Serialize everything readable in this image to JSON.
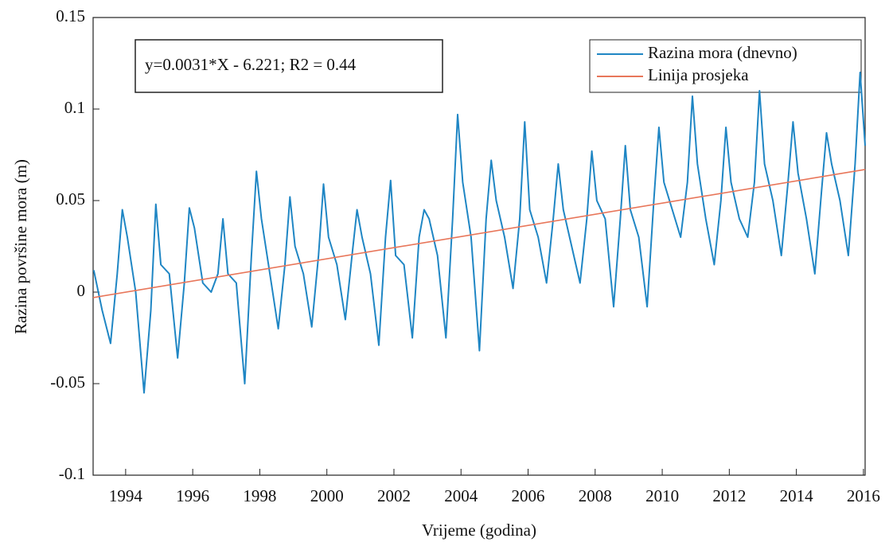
{
  "chart_data": {
    "type": "line",
    "annotation": "y=0.0031*X - 6.221; R2 = 0.44",
    "xlabel": "Vrijeme (godina)",
    "ylabel": "Razina površine mora (m)",
    "xlim": [
      1993.03,
      2016.05
    ],
    "ylim": [
      -0.1,
      0.15
    ],
    "xticks": [
      1994,
      1996,
      1998,
      2000,
      2002,
      2004,
      2006,
      2008,
      2010,
      2012,
      2014,
      2016
    ],
    "yticks": [
      0.15,
      0.1,
      0.05,
      0,
      -0.05,
      -0.1
    ],
    "legend": "upper right",
    "series": [
      {
        "name": "Razina mora (dnevno)",
        "color": "#1f86c4",
        "x": [
          1993.05,
          1993.3,
          1993.55,
          1993.75,
          1993.9,
          1994.05,
          1994.3,
          1994.55,
          1994.75,
          1994.9,
          1995.05,
          1995.3,
          1995.55,
          1995.75,
          1995.9,
          1996.05,
          1996.3,
          1996.55,
          1996.75,
          1996.9,
          1997.05,
          1997.3,
          1997.55,
          1997.75,
          1997.9,
          1998.05,
          1998.3,
          1998.55,
          1998.75,
          1998.9,
          1999.05,
          1999.3,
          1999.55,
          1999.75,
          1999.9,
          2000.05,
          2000.3,
          2000.55,
          2000.75,
          2000.9,
          2001.05,
          2001.3,
          2001.55,
          2001.75,
          2001.9,
          2002.05,
          2002.3,
          2002.55,
          2002.75,
          2002.9,
          2003.05,
          2003.3,
          2003.55,
          2003.75,
          2003.9,
          2004.05,
          2004.3,
          2004.55,
          2004.75,
          2004.9,
          2005.05,
          2005.3,
          2005.55,
          2005.75,
          2005.9,
          2006.05,
          2006.3,
          2006.55,
          2006.75,
          2006.9,
          2007.05,
          2007.3,
          2007.55,
          2007.75,
          2007.9,
          2008.05,
          2008.3,
          2008.55,
          2008.75,
          2008.9,
          2009.05,
          2009.3,
          2009.55,
          2009.75,
          2009.9,
          2010.05,
          2010.3,
          2010.55,
          2010.75,
          2010.9,
          2011.05,
          2011.3,
          2011.55,
          2011.75,
          2011.9,
          2012.05,
          2012.3,
          2012.55,
          2012.75,
          2012.9,
          2013.05,
          2013.3,
          2013.55,
          2013.75,
          2013.9,
          2014.05,
          2014.3,
          2014.55,
          2014.75,
          2014.9,
          2015.05,
          2015.3,
          2015.55,
          2015.75,
          2015.9,
          2016.05
        ],
        "values": [
          0.012,
          -0.01,
          -0.028,
          0.01,
          0.045,
          0.03,
          0,
          -0.055,
          -0.01,
          0.048,
          0.015,
          0.01,
          -0.036,
          0.005,
          0.046,
          0.035,
          0.005,
          0,
          0.01,
          0.04,
          0.01,
          0.005,
          -0.05,
          0.02,
          0.066,
          0.04,
          0.01,
          -0.02,
          0.015,
          0.052,
          0.025,
          0.01,
          -0.019,
          0.02,
          0.059,
          0.03,
          0.015,
          -0.015,
          0.02,
          0.045,
          0.03,
          0.01,
          -0.029,
          0.03,
          0.061,
          0.02,
          0.015,
          -0.025,
          0.03,
          0.045,
          0.04,
          0.02,
          -0.025,
          0.04,
          0.097,
          0.06,
          0.03,
          -0.032,
          0.04,
          0.072,
          0.05,
          0.03,
          0.002,
          0.04,
          0.093,
          0.045,
          0.03,
          0.005,
          0.04,
          0.07,
          0.045,
          0.025,
          0.005,
          0.04,
          0.077,
          0.05,
          0.04,
          -0.008,
          0.04,
          0.08,
          0.045,
          0.03,
          -0.008,
          0.05,
          0.09,
          0.06,
          0.045,
          0.03,
          0.06,
          0.107,
          0.07,
          0.04,
          0.015,
          0.05,
          0.09,
          0.06,
          0.04,
          0.03,
          0.06,
          0.11,
          0.07,
          0.05,
          0.02,
          0.06,
          0.093,
          0.065,
          0.04,
          0.01,
          0.055,
          0.087,
          0.07,
          0.05,
          0.02,
          0.07,
          0.12,
          0.08
        ]
      },
      {
        "name": "Linija prosjeka",
        "color": "#e8765a",
        "x": [
          1993.03,
          2016.05
        ],
        "values": [
          -0.003,
          0.067
        ]
      }
    ]
  }
}
